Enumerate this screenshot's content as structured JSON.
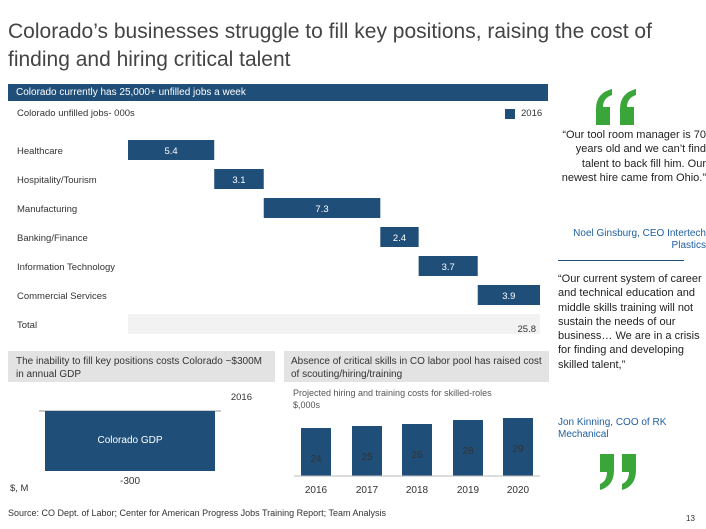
{
  "title": "Colorado’s businesses struggle to fill key positions, raising the cost of finding and hiring critical talent",
  "banner": "Colorado currently has 25,000+ unfilled jobs a week",
  "colors": {
    "accent": "#1f4e79",
    "panel": "#e3e3e3",
    "total_bar": "#f2f2f2",
    "quote_mark": "#3aa63a",
    "author": "#1f5fa0"
  },
  "icons": {
    "open_quote": "open-quote-icon",
    "close_quote": "close-quote-icon"
  },
  "chart_data": [
    {
      "type": "bar",
      "subtype": "waterfall",
      "title": "Colorado unfilled jobs- 000s",
      "legend": [
        "2016"
      ],
      "legend_position": "top-right",
      "categories": [
        "Healthcare",
        "Hospitality/Tourism",
        "Manufacturing",
        "Banking/Finance",
        "Information Technology",
        "Commercial Services",
        "Total"
      ],
      "values": [
        5.4,
        3.1,
        7.3,
        2.4,
        3.7,
        3.9,
        25.8
      ],
      "value_labels": [
        "5.4",
        "3.1",
        "7.3",
        "2.4",
        "3.7",
        "3.9",
        "25.8"
      ],
      "xlim": [
        0,
        25.8
      ]
    },
    {
      "type": "bar",
      "header": "The inability to fill key positions costs Colorado ~$300M in annual GDP",
      "legend": [
        "2016"
      ],
      "categories": [
        "Colorado GDP"
      ],
      "values": [
        -300
      ],
      "value_labels": [
        "-300"
      ],
      "unit_label": "$, M"
    },
    {
      "type": "bar",
      "header": "Absence of critical skills in CO labor pool has raised cost of scouting/hiring/training",
      "title": "Projected hiring and training costs for skilled-roles",
      "subtitle": "$,000s",
      "categories": [
        "2016",
        "2017",
        "2018",
        "2019",
        "2020"
      ],
      "values": [
        24,
        25,
        26,
        28,
        29
      ],
      "value_labels": [
        "24",
        "25",
        "26",
        "28",
        "29"
      ],
      "ylim": [
        0,
        29
      ]
    }
  ],
  "quotes": [
    {
      "text": "“Our tool room manager is 70 years old and we can’t find talent to back fill him. Our newest hire came from Ohio.”",
      "author": "Noel Ginsburg, CEO Intertech Plastics"
    },
    {
      "text": "“Our current system of career and technical education and middle skills training will not sustain the needs of our business… We are in a crisis for finding and developing skilled talent,”",
      "author": "Jon Kinning, COO of RK Mechanical"
    }
  ],
  "source": "Source: CO Dept. of Labor; Center for American Progress Jobs Training Report; Team Analysis",
  "page_number": "13"
}
